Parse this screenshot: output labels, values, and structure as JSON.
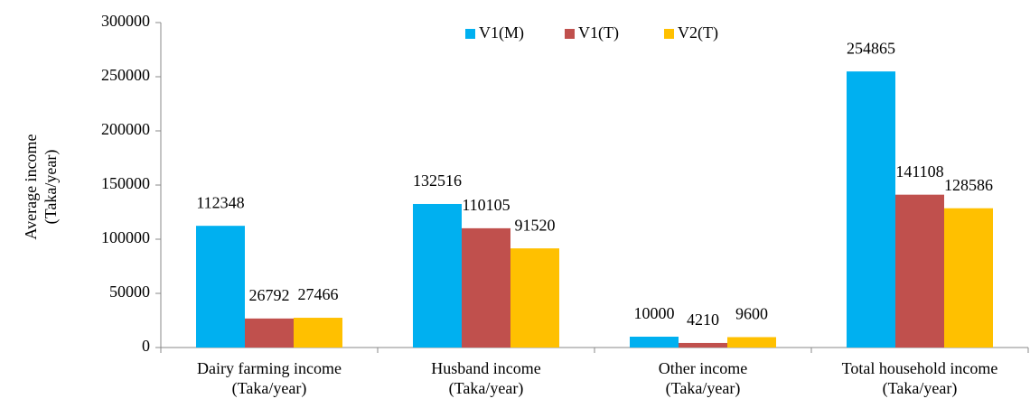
{
  "chart_data": {
    "type": "bar",
    "y_label": "Average income\n(Taka/year)",
    "categories": [
      "Dairy farming income\n(Taka/year)",
      "Husband income\n(Taka/year)",
      "Other income\n(Taka/year)",
      "Total household income\n(Taka/year)"
    ],
    "series": [
      {
        "name": "V1(M)",
        "color": "#00b0f0",
        "values": [
          112348,
          132516,
          10000,
          254865
        ]
      },
      {
        "name": "V1(T)",
        "color": "#c0504d",
        "values": [
          26792,
          110105,
          4210,
          141108
        ]
      },
      {
        "name": "V2(T)",
        "color": "#ffc000",
        "values": [
          27466,
          91520,
          9600,
          128586
        ]
      }
    ],
    "ylim": [
      0,
      300000
    ],
    "yticks": [
      0,
      50000,
      100000,
      150000,
      200000,
      250000,
      300000
    ],
    "grid": false
  }
}
